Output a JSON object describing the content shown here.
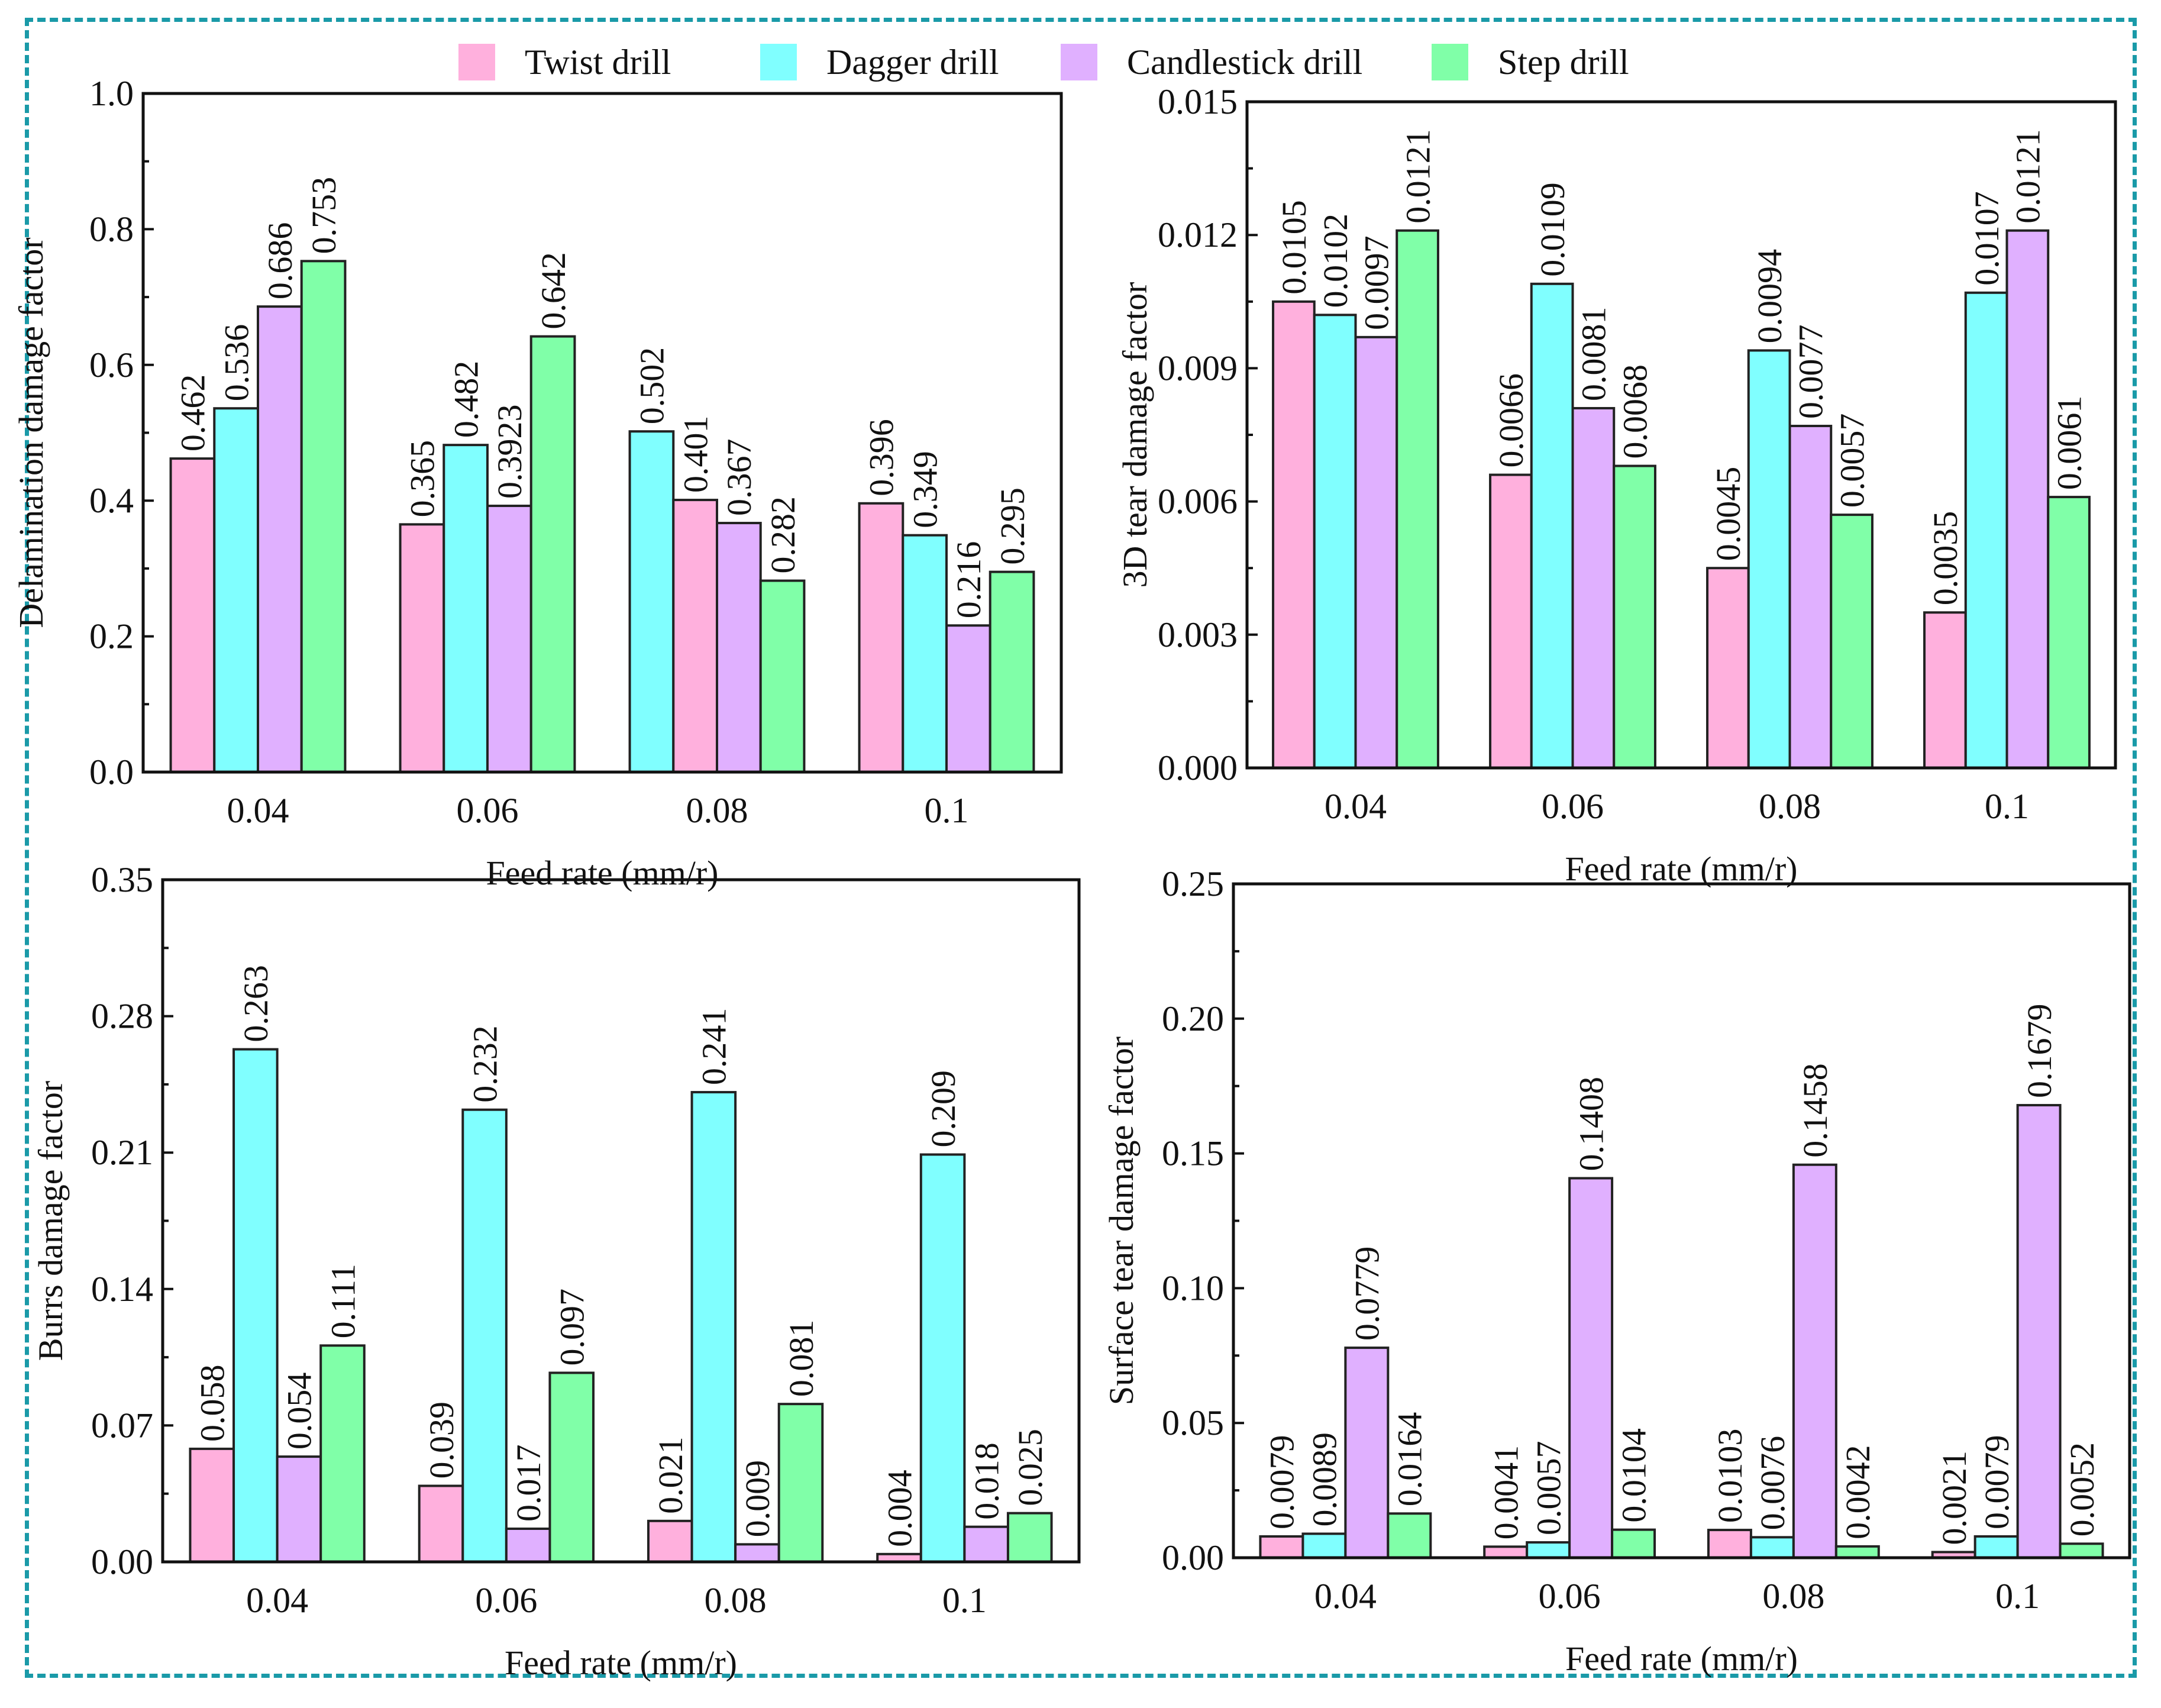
{
  "legend": [
    {
      "name": "Twist drill",
      "color": "#ffb0dd"
    },
    {
      "name": "Dagger drill",
      "color": "#80ffff"
    },
    {
      "name": "Candlestick drill",
      "color": "#e0b0ff"
    },
    {
      "name": "Step drill",
      "color": "#80ffa8"
    }
  ],
  "chart_data": [
    {
      "type": "bar",
      "title": "",
      "xlabel": "Feed rate (mm/r)",
      "ylabel": "Delamination damage factor",
      "categories": [
        "0.04",
        "0.06",
        "0.08",
        "0.1"
      ],
      "ylim": [
        0,
        1.0
      ],
      "yticks": [
        "0.0",
        "0.2",
        "0.4",
        "0.6",
        "0.8",
        "1.0"
      ],
      "series": [
        {
          "name": "Twist drill",
          "values": [
            0.462,
            0.365,
            0.401,
            0.396
          ],
          "labels": [
            "0.462",
            "0.365",
            "0.401",
            "0.396"
          ]
        },
        {
          "name": "Dagger drill",
          "values": [
            0.536,
            0.482,
            0.502,
            0.349
          ],
          "labels": [
            "0.536",
            "0.482",
            "0.502",
            "0.349"
          ]
        },
        {
          "name": "Candlestick drill",
          "values": [
            0.686,
            0.3923,
            0.367,
            0.216
          ],
          "labels": [
            "0.686",
            "0.3923",
            "0.367",
            "0.216"
          ]
        },
        {
          "name": "Step drill",
          "values": [
            0.753,
            0.642,
            0.282,
            0.295
          ],
          "labels": [
            "0.753",
            "0.642",
            "0.282",
            "0.295"
          ]
        }
      ],
      "bar_order": [
        [
          0,
          1,
          2,
          3
        ],
        [
          0,
          1,
          2,
          3
        ],
        [
          1,
          0,
          2,
          3
        ],
        [
          0,
          1,
          2,
          3
        ]
      ],
      "grid": false,
      "legend_position": "top"
    },
    {
      "type": "bar",
      "title": "",
      "xlabel": "Feed rate (mm/r)",
      "ylabel": "3D tear damage factor",
      "categories": [
        "0.04",
        "0.06",
        "0.08",
        "0.1"
      ],
      "ylim": [
        0,
        0.015
      ],
      "yticks": [
        "0.000",
        "0.003",
        "0.006",
        "0.009",
        "0.012",
        "0.015"
      ],
      "series": [
        {
          "name": "Twist drill",
          "values": [
            0.0105,
            0.0066,
            0.0045,
            0.0035
          ],
          "labels": [
            "0.0105",
            "0.0066",
            "0.0045",
            "0.0035"
          ]
        },
        {
          "name": "Dagger drill",
          "values": [
            0.0102,
            0.0109,
            0.0094,
            0.0107
          ],
          "labels": [
            "0.0102",
            "0.0109",
            "0.0094",
            "0.0107"
          ]
        },
        {
          "name": "Candlestick drill",
          "values": [
            0.0097,
            0.0081,
            0.0077,
            0.0121
          ],
          "labels": [
            "0.0097",
            "0.0081",
            "0.0077",
            "0.0121"
          ]
        },
        {
          "name": "Step drill",
          "values": [
            0.0121,
            0.0068,
            0.0057,
            0.0061
          ],
          "labels": [
            "0.0121",
            "0.0068",
            "0.0057",
            "0.0061"
          ]
        }
      ],
      "bar_order": [
        [
          0,
          1,
          2,
          3
        ],
        [
          0,
          1,
          2,
          3
        ],
        [
          0,
          1,
          2,
          3
        ],
        [
          0,
          1,
          2,
          3
        ]
      ],
      "grid": false,
      "legend_position": "top"
    },
    {
      "type": "bar",
      "title": "",
      "xlabel": "Feed rate (mm/r)",
      "ylabel": "Burrs damage factor",
      "categories": [
        "0.04",
        "0.06",
        "0.08",
        "0.1"
      ],
      "ylim": [
        0,
        0.35
      ],
      "yticks": [
        "0.00",
        "0.07",
        "0.14",
        "0.21",
        "0.28",
        "0.35"
      ],
      "series": [
        {
          "name": "Twist drill",
          "values": [
            0.058,
            0.039,
            0.021,
            0.004
          ],
          "labels": [
            "0.058",
            "0.039",
            "0.021",
            "0.004"
          ]
        },
        {
          "name": "Dagger drill",
          "values": [
            0.263,
            0.232,
            0.241,
            0.209
          ],
          "labels": [
            "0.263",
            "0.232",
            "0.241",
            "0.209"
          ]
        },
        {
          "name": "Candlestick drill",
          "values": [
            0.054,
            0.017,
            0.009,
            0.018
          ],
          "labels": [
            "0.054",
            "0.017",
            "0.009",
            "0.018"
          ]
        },
        {
          "name": "Step drill",
          "values": [
            0.111,
            0.097,
            0.081,
            0.025
          ],
          "labels": [
            "0.111",
            "0.097",
            "0.081",
            "0.025"
          ]
        }
      ],
      "bar_order": [
        [
          0,
          1,
          2,
          3
        ],
        [
          0,
          1,
          2,
          3
        ],
        [
          0,
          1,
          2,
          3
        ],
        [
          0,
          1,
          2,
          3
        ]
      ],
      "grid": false,
      "legend_position": "top"
    },
    {
      "type": "bar",
      "title": "",
      "xlabel": "Feed rate (mm/r)",
      "ylabel": "Surface tear damage factor",
      "categories": [
        "0.04",
        "0.06",
        "0.08",
        "0.1"
      ],
      "ylim": [
        0,
        0.25
      ],
      "yticks": [
        "0.00",
        "0.05",
        "0.10",
        "0.15",
        "0.20",
        "0.25"
      ],
      "series": [
        {
          "name": "Twist drill",
          "values": [
            0.0079,
            0.0041,
            0.0103,
            0.0021
          ],
          "labels": [
            "0.0079",
            "0.0041",
            "0.0103",
            "0.0021"
          ]
        },
        {
          "name": "Dagger drill",
          "values": [
            0.0089,
            0.0057,
            0.0076,
            0.0079
          ],
          "labels": [
            "0.0089",
            "0.0057",
            "0.0076",
            "0.0079"
          ]
        },
        {
          "name": "Candlestick drill",
          "values": [
            0.0779,
            0.1408,
            0.1458,
            0.1679
          ],
          "labels": [
            "0.0779",
            "0.1408",
            "0.1458",
            "0.1679"
          ]
        },
        {
          "name": "Step drill",
          "values": [
            0.0164,
            0.0104,
            0.0042,
            0.0052
          ],
          "labels": [
            "0.0164",
            "0.0104",
            "0.0042",
            "0.0052"
          ]
        }
      ],
      "bar_order": [
        [
          0,
          1,
          2,
          3
        ],
        [
          0,
          1,
          2,
          3
        ],
        [
          0,
          1,
          2,
          3
        ],
        [
          0,
          1,
          2,
          3
        ]
      ],
      "grid": false,
      "legend_position": "top"
    }
  ]
}
